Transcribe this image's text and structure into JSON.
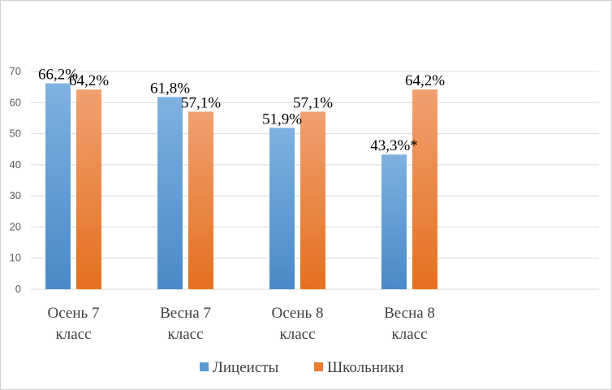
{
  "chart_data": {
    "type": "bar",
    "categories": [
      [
        "Осень 7",
        "класс"
      ],
      [
        "Весна 7",
        "класс"
      ],
      [
        "Осень 8",
        "класс"
      ],
      [
        "Весна 8",
        "класс"
      ]
    ],
    "series": [
      {
        "name": "Лицеисты",
        "values": [
          66.2,
          61.8,
          51.9,
          43.3
        ],
        "labels": [
          "66,2%",
          "61,8%",
          "51,9%",
          "43,3%*"
        ],
        "color": "#5b9bd5"
      },
      {
        "name": "Школьники",
        "values": [
          64.2,
          57.1,
          57.1,
          64.2
        ],
        "labels": [
          "64,2%",
          "57,1%",
          "57,1%",
          "64,2%"
        ],
        "color": "#ed7d31"
      }
    ],
    "yticks": [
      "0",
      "10",
      "20",
      "30",
      "40",
      "50",
      "60",
      "70"
    ],
    "ylim": [
      0,
      70
    ],
    "grid": true,
    "legend_position": "bottom"
  }
}
